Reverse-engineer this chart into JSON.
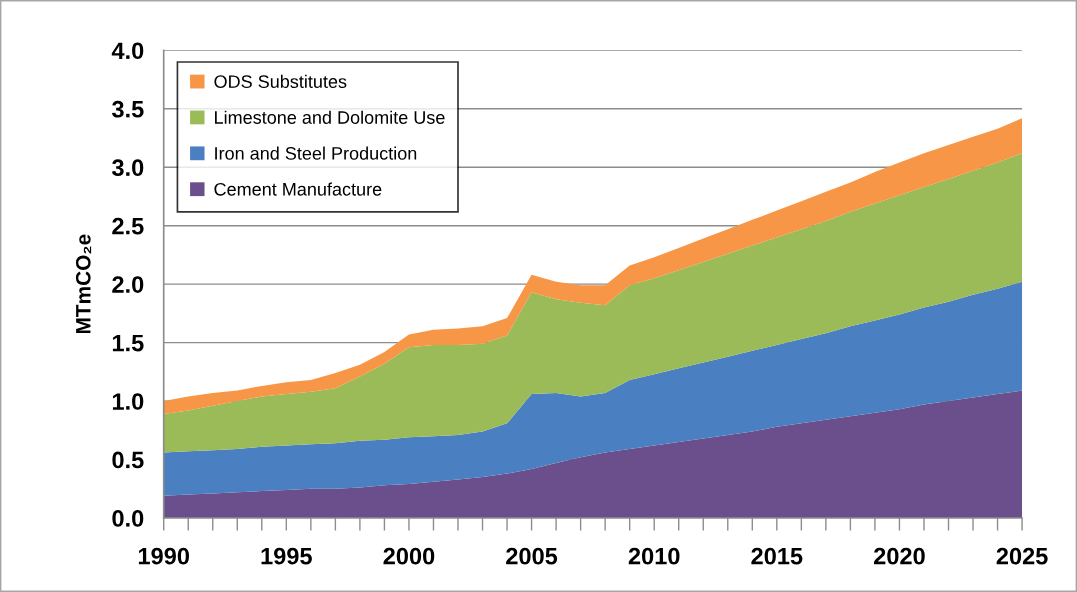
{
  "chart_data": {
    "type": "area",
    "stacked": true,
    "ylabel": "MTmCO₂e",
    "x": [
      1990,
      1991,
      1992,
      1993,
      1994,
      1995,
      1996,
      1997,
      1998,
      1999,
      2000,
      2001,
      2002,
      2003,
      2004,
      2005,
      2006,
      2007,
      2008,
      2009,
      2010,
      2011,
      2012,
      2013,
      2014,
      2015,
      2016,
      2017,
      2018,
      2019,
      2020,
      2021,
      2022,
      2023,
      2024,
      2025
    ],
    "series": [
      {
        "name": "Cement Manufacture",
        "color": "#6b4f8c",
        "values": [
          0.19,
          0.2,
          0.21,
          0.22,
          0.23,
          0.24,
          0.25,
          0.25,
          0.26,
          0.28,
          0.29,
          0.31,
          0.33,
          0.35,
          0.38,
          0.42,
          0.47,
          0.52,
          0.56,
          0.59,
          0.62,
          0.65,
          0.68,
          0.71,
          0.74,
          0.78,
          0.81,
          0.84,
          0.87,
          0.9,
          0.93,
          0.97,
          1.0,
          1.03,
          1.06,
          1.09
        ]
      },
      {
        "name": "Iron and Steel Production",
        "color": "#4a7fc1",
        "values": [
          0.37,
          0.37,
          0.37,
          0.37,
          0.38,
          0.38,
          0.38,
          0.39,
          0.4,
          0.39,
          0.4,
          0.39,
          0.38,
          0.39,
          0.43,
          0.64,
          0.6,
          0.52,
          0.51,
          0.59,
          0.61,
          0.63,
          0.65,
          0.67,
          0.69,
          0.7,
          0.72,
          0.74,
          0.77,
          0.79,
          0.81,
          0.83,
          0.85,
          0.88,
          0.9,
          0.93
        ]
      },
      {
        "name": "Limestone and Dolomite Use",
        "color": "#9bbb59",
        "values": [
          0.33,
          0.35,
          0.38,
          0.41,
          0.43,
          0.44,
          0.45,
          0.47,
          0.55,
          0.65,
          0.77,
          0.78,
          0.77,
          0.75,
          0.75,
          0.87,
          0.8,
          0.8,
          0.75,
          0.81,
          0.82,
          0.84,
          0.86,
          0.88,
          0.9,
          0.92,
          0.94,
          0.96,
          0.98,
          1.0,
          1.02,
          1.03,
          1.05,
          1.06,
          1.08,
          1.1
        ]
      },
      {
        "name": "ODS Substitutes",
        "color": "#f79646",
        "values": [
          0.11,
          0.12,
          0.11,
          0.09,
          0.09,
          0.1,
          0.1,
          0.13,
          0.1,
          0.1,
          0.11,
          0.13,
          0.14,
          0.15,
          0.15,
          0.15,
          0.15,
          0.15,
          0.17,
          0.17,
          0.18,
          0.19,
          0.2,
          0.21,
          0.22,
          0.23,
          0.24,
          0.25,
          0.25,
          0.27,
          0.28,
          0.29,
          0.29,
          0.29,
          0.29,
          0.3
        ]
      }
    ],
    "xlim": [
      1990,
      2025
    ],
    "xticks": [
      {
        "value": 1990,
        "label": "1990"
      },
      {
        "value": 1991,
        "label": null
      },
      {
        "value": 1992,
        "label": null
      },
      {
        "value": 1993,
        "label": null
      },
      {
        "value": 1994,
        "label": null
      },
      {
        "value": 1995,
        "label": "1995"
      },
      {
        "value": 1996,
        "label": null
      },
      {
        "value": 1997,
        "label": null
      },
      {
        "value": 1998,
        "label": null
      },
      {
        "value": 1999,
        "label": null
      },
      {
        "value": 2000,
        "label": "2000"
      },
      {
        "value": 2001,
        "label": null
      },
      {
        "value": 2002,
        "label": null
      },
      {
        "value": 2003,
        "label": null
      },
      {
        "value": 2004,
        "label": null
      },
      {
        "value": 2005,
        "label": "2005"
      },
      {
        "value": 2006,
        "label": null
      },
      {
        "value": 2007,
        "label": null
      },
      {
        "value": 2008,
        "label": null
      },
      {
        "value": 2009,
        "label": null
      },
      {
        "value": 2010,
        "label": "2010"
      },
      {
        "value": 2011,
        "label": null
      },
      {
        "value": 2012,
        "label": null
      },
      {
        "value": 2013,
        "label": null
      },
      {
        "value": 2014,
        "label": null
      },
      {
        "value": 2015,
        "label": "2015"
      },
      {
        "value": 2016,
        "label": null
      },
      {
        "value": 2017,
        "label": null
      },
      {
        "value": 2018,
        "label": null
      },
      {
        "value": 2019,
        "label": null
      },
      {
        "value": 2020,
        "label": "2020"
      },
      {
        "value": 2021,
        "label": null
      },
      {
        "value": 2022,
        "label": null
      },
      {
        "value": 2023,
        "label": null
      },
      {
        "value": 2024,
        "label": null
      },
      {
        "value": 2025,
        "label": "2025"
      }
    ],
    "ylim": [
      0,
      4
    ],
    "yticks": [
      {
        "value": 0,
        "label": "0.0"
      },
      {
        "value": 0.5,
        "label": "0.5"
      },
      {
        "value": 1,
        "label": "1.0"
      },
      {
        "value": 1.5,
        "label": "1.5"
      },
      {
        "value": 2,
        "label": "2.0"
      },
      {
        "value": 2.5,
        "label": "2.5"
      },
      {
        "value": 3,
        "label": "3.0"
      },
      {
        "value": 3.5,
        "label": "3.5"
      },
      {
        "value": 4,
        "label": "4.0"
      }
    ],
    "grid": "y",
    "legend": "top left"
  }
}
